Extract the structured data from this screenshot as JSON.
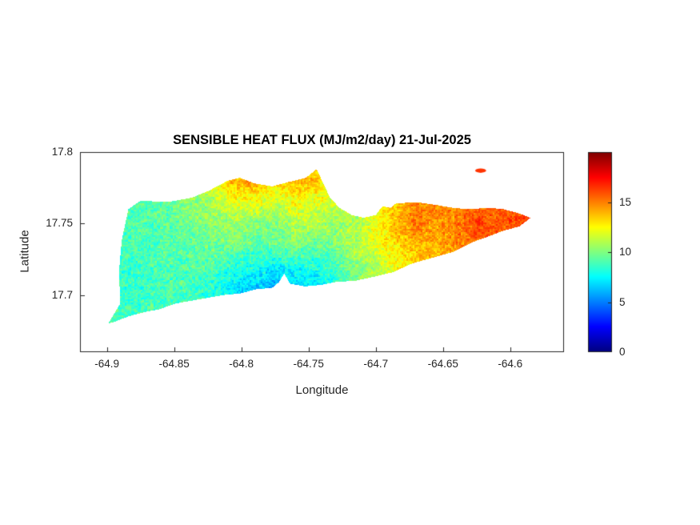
{
  "figure": {
    "title": "SENSIBLE HEAT FLUX (MJ/m2/day) 21-Jul-2025",
    "xlabel": "Longitude",
    "ylabel": "Latitude",
    "background": "#ffffff"
  },
  "axes": {
    "xlim": [
      -64.92,
      -64.56
    ],
    "ylim": [
      17.66,
      17.8
    ],
    "xticks": [
      -64.9,
      -64.85,
      -64.8,
      -64.75,
      -64.7,
      -64.65,
      -64.6
    ],
    "xtick_labels": [
      "-64.9",
      "-64.85",
      "-64.8",
      "-64.75",
      "-64.7",
      "-64.65",
      "-64.6"
    ],
    "yticks": [
      17.7,
      17.75,
      17.8
    ],
    "ytick_labels": [
      "17.7",
      "17.75",
      "17.8"
    ]
  },
  "colorbar": {
    "colormap": "jet",
    "vmin": 0,
    "vmax": 20,
    "ticks": [
      0,
      5,
      10,
      15
    ],
    "tick_labels": [
      "0",
      "5",
      "10",
      "15"
    ]
  },
  "chart_data": {
    "type": "heatmap",
    "title": "SENSIBLE HEAT FLUX (MJ/m2/day) 21-Jul-2025",
    "variable": "SENSIBLE HEAT FLUX",
    "units": "MJ/m2/day",
    "date": "21-Jul-2025",
    "xlabel": "Longitude",
    "ylabel": "Latitude",
    "value_range": [
      0,
      20
    ],
    "noise_amplitude": 1.5,
    "grid": {
      "lon": [
        -64.91,
        -64.895,
        -64.88,
        -64.865,
        -64.85,
        -64.835,
        -64.82,
        -64.805,
        -64.79,
        -64.775,
        -64.76,
        -64.745,
        -64.73,
        -64.715,
        -64.7,
        -64.685,
        -64.67,
        -64.655,
        -64.64,
        -64.625,
        -64.61,
        -64.595,
        -64.58,
        -64.565
      ],
      "lat": [
        17.795,
        17.78,
        17.765,
        17.75,
        17.735,
        17.72,
        17.705,
        17.69,
        17.675,
        17.66
      ],
      "values": [
        [
          9.0,
          9.2,
          9.0,
          9.5,
          10.0,
          10.5,
          12.0,
          14.5,
          15.0,
          13.5,
          14.5,
          14.0,
          12.5,
          12.0,
          12.5,
          13.5,
          14.5,
          15.0,
          15.0,
          15.5,
          15.5,
          15.5,
          16.0,
          16.0
        ],
        [
          9.0,
          9.0,
          9.2,
          9.5,
          10.0,
          10.5,
          12.5,
          14.0,
          14.5,
          13.0,
          14.0,
          13.5,
          12.0,
          12.0,
          12.5,
          13.5,
          14.5,
          15.0,
          15.0,
          15.5,
          15.5,
          15.5,
          16.0,
          16.5
        ],
        [
          8.5,
          9.0,
          9.0,
          9.2,
          9.8,
          10.2,
          11.0,
          12.0,
          12.0,
          11.5,
          12.5,
          12.0,
          11.5,
          11.5,
          12.0,
          13.5,
          14.8,
          15.0,
          14.5,
          15.5,
          16.0,
          15.5,
          16.2,
          17.0
        ],
        [
          8.5,
          8.8,
          9.0,
          9.0,
          9.5,
          9.8,
          10.2,
          10.5,
          10.2,
          10.0,
          11.0,
          11.0,
          10.5,
          11.0,
          12.0,
          14.0,
          15.0,
          14.5,
          15.0,
          16.0,
          15.5,
          16.0,
          16.8,
          17.2
        ],
        [
          8.5,
          8.6,
          9.0,
          9.0,
          9.2,
          9.4,
          9.8,
          9.8,
          9.2,
          9.6,
          10.0,
          9.5,
          10.0,
          11.0,
          12.0,
          13.0,
          14.0,
          14.0,
          14.8,
          15.2,
          15.8,
          16.0,
          16.0,
          16.0
        ],
        [
          8.8,
          8.5,
          8.6,
          9.0,
          9.0,
          9.0,
          9.0,
          8.2,
          8.0,
          7.2,
          8.0,
          8.0,
          9.0,
          10.0,
          11.0,
          12.2,
          13.2,
          14.0,
          14.2,
          14.8,
          15.0,
          15.0,
          15.0,
          15.0
        ],
        [
          9.0,
          8.8,
          8.4,
          8.8,
          9.0,
          8.8,
          8.2,
          7.0,
          6.5,
          5.8,
          6.5,
          7.0,
          8.0,
          9.8,
          11.0,
          12.0,
          12.8,
          13.2,
          13.8,
          14.0,
          14.2,
          14.2,
          14.0,
          14.0
        ],
        [
          9.0,
          9.0,
          8.8,
          9.0,
          8.8,
          8.4,
          8.0,
          7.4,
          7.2,
          7.0,
          7.2,
          7.8,
          8.8,
          9.8,
          10.8,
          11.8,
          12.2,
          12.8,
          13.0,
          13.2,
          13.8,
          13.8,
          13.8,
          13.8
        ],
        [
          8.6,
          9.0,
          9.0,
          9.0,
          8.8,
          8.5,
          8.2,
          8.0,
          7.8,
          7.8,
          8.0,
          8.5,
          9.0,
          10.0,
          11.0,
          11.8,
          12.0,
          12.2,
          12.8,
          13.0,
          13.2,
          13.2,
          13.2,
          13.2
        ],
        [
          8.5,
          9.0,
          9.0,
          9.0,
          8.8,
          8.5,
          8.2,
          8.0,
          8.0,
          8.0,
          8.5,
          9.0,
          9.5,
          10.0,
          11.0,
          11.8,
          12.0,
          12.0,
          12.8,
          13.0,
          13.0,
          13.0,
          13.0,
          13.0
        ]
      ]
    },
    "region_outline_lonlat": [
      [
        -64.899,
        17.68
      ],
      [
        -64.89,
        17.694
      ],
      [
        -64.891,
        17.716
      ],
      [
        -64.889,
        17.738
      ],
      [
        -64.884,
        17.76
      ],
      [
        -64.875,
        17.766
      ],
      [
        -64.855,
        17.765
      ],
      [
        -64.837,
        17.768
      ],
      [
        -64.824,
        17.773
      ],
      [
        -64.81,
        17.78
      ],
      [
        -64.801,
        17.782
      ],
      [
        -64.79,
        17.778
      ],
      [
        -64.777,
        17.776
      ],
      [
        -64.765,
        17.779
      ],
      [
        -64.752,
        17.782
      ],
      [
        -64.744,
        17.788
      ],
      [
        -64.74,
        17.78
      ],
      [
        -64.734,
        17.768
      ],
      [
        -64.727,
        17.761
      ],
      [
        -64.718,
        17.756
      ],
      [
        -64.709,
        17.754
      ],
      [
        -64.7,
        17.756
      ],
      [
        -64.695,
        17.762
      ],
      [
        -64.689,
        17.761
      ],
      [
        -64.685,
        17.764
      ],
      [
        -64.67,
        17.765
      ],
      [
        -64.655,
        17.763
      ],
      [
        -64.643,
        17.761
      ],
      [
        -64.631,
        17.76
      ],
      [
        -64.616,
        17.761
      ],
      [
        -64.605,
        17.76
      ],
      [
        -64.593,
        17.757
      ],
      [
        -64.585,
        17.754
      ],
      [
        -64.593,
        17.748
      ],
      [
        -64.605,
        17.745
      ],
      [
        -64.616,
        17.741
      ],
      [
        -64.628,
        17.737
      ],
      [
        -64.643,
        17.73
      ],
      [
        -64.658,
        17.726
      ],
      [
        -64.673,
        17.722
      ],
      [
        -64.687,
        17.716
      ],
      [
        -64.7,
        17.713
      ],
      [
        -64.715,
        17.71
      ],
      [
        -64.73,
        17.709
      ],
      [
        -64.741,
        17.707
      ],
      [
        -64.753,
        17.706
      ],
      [
        -64.764,
        17.708
      ],
      [
        -64.768,
        17.715
      ],
      [
        -64.772,
        17.709
      ],
      [
        -64.777,
        17.705
      ],
      [
        -64.789,
        17.704
      ],
      [
        -64.801,
        17.701
      ],
      [
        -64.813,
        17.7
      ],
      [
        -64.825,
        17.698
      ],
      [
        -64.837,
        17.696
      ],
      [
        -64.849,
        17.694
      ],
      [
        -64.861,
        17.69
      ],
      [
        -64.872,
        17.688
      ],
      [
        -64.884,
        17.685
      ],
      [
        -64.895,
        17.681
      ]
    ],
    "islet": {
      "lon": -64.622,
      "lat": 17.787,
      "rx": 0.004,
      "ry": 0.0015,
      "value": 16.5
    }
  }
}
